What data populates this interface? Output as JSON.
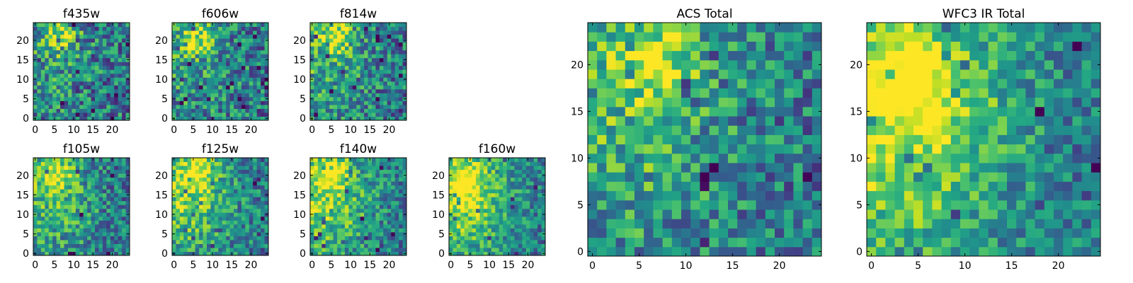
{
  "chart_data": [
    {
      "type": "heatmap",
      "title": "f435w",
      "colormap": "viridis",
      "xlim": [
        0,
        24
      ],
      "ylim": [
        0,
        24
      ],
      "xticks": [
        "0",
        "5",
        "10",
        "15",
        "20"
      ],
      "yticks": [
        "0",
        "5",
        "10",
        "15",
        "20"
      ],
      "bright_spot": {
        "x": 7,
        "y": 21
      },
      "contrast": 0.15
    },
    {
      "type": "heatmap",
      "title": "f606w",
      "colormap": "viridis",
      "xlim": [
        0,
        24
      ],
      "ylim": [
        0,
        24
      ],
      "xticks": [
        "0",
        "5",
        "10",
        "15",
        "20"
      ],
      "yticks": [
        "0",
        "5",
        "10",
        "15",
        "20"
      ],
      "bright_spot": {
        "x": 6,
        "y": 21
      },
      "contrast": 0.2
    },
    {
      "type": "heatmap",
      "title": "f814w",
      "colormap": "viridis",
      "xlim": [
        0,
        24
      ],
      "ylim": [
        0,
        24
      ],
      "xticks": [
        "0",
        "5",
        "10",
        "15",
        "20"
      ],
      "yticks": [
        "0",
        "5",
        "10",
        "15",
        "20"
      ],
      "bright_spot": {
        "x": 6,
        "y": 21
      },
      "contrast": 0.25
    },
    {
      "type": "heatmap",
      "title": "f105w",
      "colormap": "viridis",
      "xlim": [
        0,
        24
      ],
      "ylim": [
        0,
        24
      ],
      "xticks": [
        "0",
        "5",
        "10",
        "15",
        "20"
      ],
      "yticks": [
        "0",
        "5",
        "10",
        "15",
        "20"
      ],
      "bright_spot": {
        "x": 6,
        "y": 21
      },
      "contrast": 0.35
    },
    {
      "type": "heatmap",
      "title": "f125w",
      "colormap": "viridis",
      "xlim": [
        0,
        24
      ],
      "ylim": [
        0,
        24
      ],
      "xticks": [
        "0",
        "5",
        "10",
        "15",
        "20"
      ],
      "yticks": [
        "0",
        "5",
        "10",
        "15",
        "20"
      ],
      "bright_spot": {
        "x": 6,
        "y": 21
      },
      "contrast": 0.45
    },
    {
      "type": "heatmap",
      "title": "f140w",
      "colormap": "viridis",
      "xlim": [
        0,
        24
      ],
      "ylim": [
        0,
        24
      ],
      "xticks": [
        "0",
        "5",
        "10",
        "15",
        "20"
      ],
      "yticks": [
        "0",
        "5",
        "10",
        "15",
        "20"
      ],
      "bright_spot": {
        "x": 5,
        "y": 21
      },
      "contrast": 0.5
    },
    {
      "type": "heatmap",
      "title": "f160w",
      "colormap": "viridis",
      "xlim": [
        0,
        24
      ],
      "ylim": [
        0,
        24
      ],
      "xticks": [
        "0",
        "5",
        "10",
        "15",
        "20"
      ],
      "yticks": [
        "0",
        "5",
        "10",
        "15",
        "20"
      ],
      "bright_spot": {
        "x": 4,
        "y": 19
      },
      "contrast": 0.55
    },
    {
      "type": "heatmap",
      "title": "ACS Total",
      "colormap": "viridis",
      "xlim": [
        0,
        24
      ],
      "ylim": [
        0,
        24
      ],
      "xticks": [
        "0",
        "5",
        "10",
        "15",
        "20"
      ],
      "yticks": [
        "0",
        "5",
        "10",
        "15",
        "20"
      ],
      "bright_spot": {
        "x": 7,
        "y": 21
      },
      "contrast": 0.3
    },
    {
      "type": "heatmap",
      "title": "WFC3 IR Total",
      "colormap": "viridis",
      "xlim": [
        0,
        24
      ],
      "ylim": [
        0,
        24
      ],
      "xticks": [
        "0",
        "5",
        "10",
        "15",
        "20"
      ],
      "yticks": [
        "0",
        "5",
        "10",
        "15",
        "20"
      ],
      "bright_spot": {
        "x": 4,
        "y": 19
      },
      "contrast": 0.6
    }
  ]
}
